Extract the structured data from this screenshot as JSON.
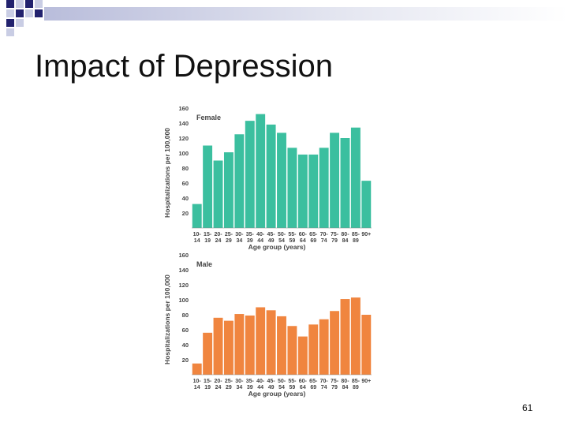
{
  "slide": {
    "title": "Impact of Depression",
    "page_number": "61"
  },
  "colors": {
    "female": "#3bbf9f",
    "male": "#f0853f",
    "text": "#444444",
    "corner_dark": "#22226e",
    "corner_light": "#c9cde4"
  },
  "chart_data": [
    {
      "type": "bar",
      "series_label": "Female",
      "ylabel": "Hospitalizations per 100,000",
      "xlabel": "Age group (years)",
      "ylim": [
        0,
        160
      ],
      "yticks": [
        20,
        40,
        60,
        80,
        100,
        120,
        140,
        160
      ],
      "categories": [
        "10-14",
        "15-19",
        "20-24",
        "25-29",
        "30-34",
        "35-39",
        "40-44",
        "45-49",
        "50-54",
        "55-59",
        "60-64",
        "65-69",
        "70-74",
        "75-79",
        "80-84",
        "85-89",
        "90+"
      ],
      "tick_top": [
        "10-",
        "15-",
        "20-",
        "25-",
        "30-",
        "35-",
        "40-",
        "45-",
        "50-",
        "55-",
        "60-",
        "65-",
        "70-",
        "75-",
        "80-",
        "85-",
        "90+"
      ],
      "tick_bottom": [
        "14",
        "19",
        "24",
        "29",
        "34",
        "39",
        "44",
        "49",
        "54",
        "59",
        "64",
        "69",
        "74",
        "79",
        "84",
        "89",
        ""
      ],
      "values": [
        32,
        110,
        90,
        101,
        125,
        143,
        152,
        138,
        127,
        107,
        98,
        98,
        107,
        127,
        120,
        134,
        63
      ]
    },
    {
      "type": "bar",
      "series_label": "Male",
      "ylabel": "Hospitalizations per 100,000",
      "xlabel": "Age group (years)",
      "ylim": [
        0,
        160
      ],
      "yticks": [
        20,
        40,
        60,
        80,
        100,
        120,
        140,
        160
      ],
      "categories": [
        "10-14",
        "15-19",
        "20-24",
        "25-29",
        "30-34",
        "35-39",
        "40-44",
        "45-49",
        "50-54",
        "55-59",
        "60-64",
        "65-69",
        "70-74",
        "75-79",
        "80-84",
        "85-89",
        "90+"
      ],
      "tick_top": [
        "10-",
        "15-",
        "20-",
        "25-",
        "30-",
        "35-",
        "40-",
        "45-",
        "50-",
        "55-",
        "60-",
        "65-",
        "70-",
        "75-",
        "80-",
        "85-",
        "90+"
      ],
      "tick_bottom": [
        "14",
        "19",
        "24",
        "29",
        "34",
        "39",
        "44",
        "49",
        "54",
        "59",
        "64",
        "69",
        "74",
        "79",
        "84",
        "89",
        ""
      ],
      "values": [
        15,
        56,
        76,
        72,
        81,
        79,
        90,
        86,
        78,
        65,
        51,
        67,
        74,
        85,
        101,
        103,
        80
      ]
    }
  ]
}
